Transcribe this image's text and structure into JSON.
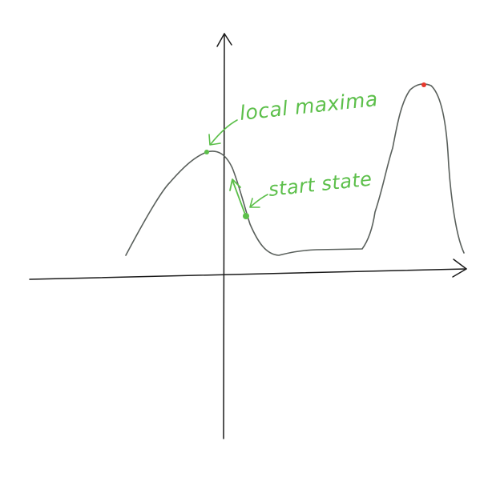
{
  "labels": {
    "local_maxima": "local maxima",
    "start_state": "start state"
  },
  "colors": {
    "background": "#ffffff",
    "axis": "#1a1a1a",
    "curve": "#5a605c",
    "annotation": "#5cbf4a",
    "global_maximum": "#e8382d"
  },
  "icons": {
    "local_maximum_point": "green-dot",
    "start_state_point": "green-dot",
    "global_maximum_point": "red-dot",
    "arrows": "hand-drawn-arrow"
  }
}
